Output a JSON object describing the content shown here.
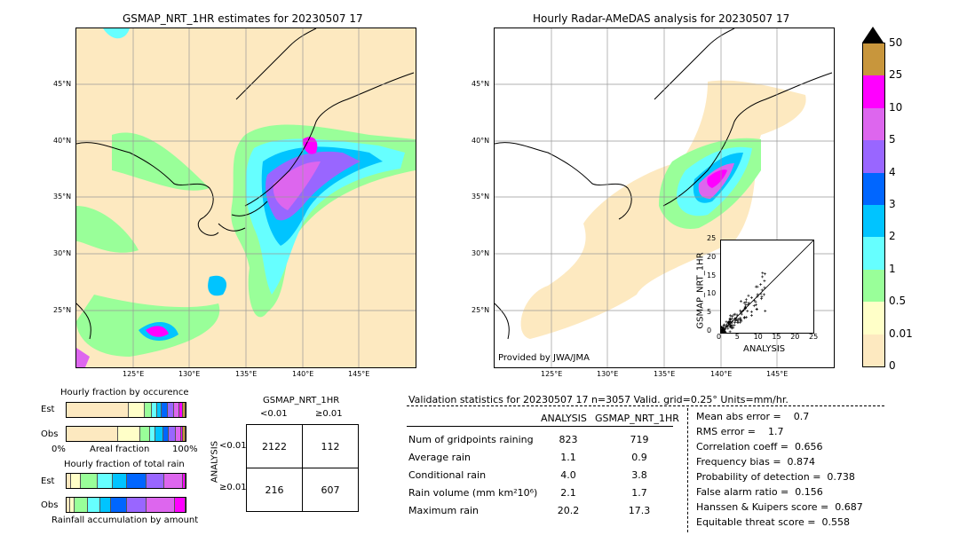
{
  "left_map": {
    "title": "GSMAP_NRT_1HR estimates for 20230507 17",
    "lat_labels": [
      "45°N",
      "40°N",
      "35°N",
      "30°N",
      "25°N"
    ],
    "lon_labels": [
      "125°E",
      "130°E",
      "135°E",
      "140°E",
      "145°E"
    ]
  },
  "right_map": {
    "title": "Hourly Radar-AMeDAS analysis for 20230507 17",
    "lat_labels": [
      "45°N",
      "40°N",
      "35°N",
      "30°N",
      "25°N"
    ],
    "lon_labels": [
      "125°E",
      "130°E",
      "135°E",
      "140°E",
      "145°E"
    ],
    "credit": "Provided by JWA/JMA"
  },
  "scatter": {
    "xlabel": "ANALYSIS",
    "ylabel": "GSMAP_NRT_1HR",
    "ticks": [
      "0",
      "5",
      "10",
      "15",
      "20",
      "25"
    ]
  },
  "colorbar": {
    "labels": [
      "50",
      "25",
      "10",
      "5",
      "4",
      "3",
      "2",
      "1",
      "0.5",
      "0.01",
      "0"
    ],
    "colors": [
      "#c8963c",
      "#ff00ff",
      "#dd66ee",
      "#9966ff",
      "#0066ff",
      "#00c4ff",
      "#66ffff",
      "#99ff99",
      "#ffffc8",
      "#fde9c0"
    ]
  },
  "occurrence": {
    "title": "Hourly fraction by occurence",
    "est_label": "Est",
    "obs_label": "Obs",
    "axis_left": "0%",
    "axis_mid": "Areal fraction",
    "axis_right": "100%"
  },
  "total_rain": {
    "title": "Hourly fraction of total rain",
    "est_label": "Est",
    "obs_label": "Obs",
    "axis_label": "Rainfall accumulation by amount"
  },
  "contingency": {
    "title": "GSMAP_NRT_1HR",
    "col_lt": "<0.01",
    "col_ge": "≥0.01",
    "row_axis": "ANALYSIS",
    "row_lt": "<0.01",
    "row_ge": "≥0.01",
    "cells": [
      "2122",
      "112",
      "216",
      "607"
    ]
  },
  "validation": {
    "header": "Validation statistics for 20230507 17  n=3057 Valid. grid=0.25° Units=mm/hr.",
    "col_analysis": "ANALYSIS",
    "col_gsmap": "GSMAP_NRT_1HR",
    "rows": [
      {
        "label": "Num of gridpoints raining",
        "analysis": "823",
        "gsmap": "719"
      },
      {
        "label": "Average rain",
        "analysis": "1.1",
        "gsmap": "0.9"
      },
      {
        "label": "Conditional rain",
        "analysis": "4.0",
        "gsmap": "3.8"
      },
      {
        "label": "Rain volume (mm km²10⁶)",
        "analysis": "2.1",
        "gsmap": "1.7"
      },
      {
        "label": "Maximum rain",
        "analysis": "20.2",
        "gsmap": "17.3"
      }
    ],
    "scores": [
      "Mean abs error =    0.7",
      "RMS error =    1.7",
      "Correlation coeff =  0.656",
      "Frequency bias =  0.874",
      "Probability of detection =  0.738",
      "False alarm ratio =  0.156",
      "Hanssen & Kuipers score =  0.687",
      "Equitable threat score =  0.558"
    ]
  },
  "chart_data": {
    "type": "table",
    "contingency_table": {
      "rows": [
        "ANALYSIS <0.01",
        "ANALYSIS ≥0.01"
      ],
      "columns": [
        "GSMAP_NRT_1HR <0.01",
        "GSMAP_NRT_1HR ≥0.01"
      ],
      "values": [
        [
          2122,
          112
        ],
        [
          216,
          607
        ]
      ]
    },
    "statistics": {
      "n": 3057,
      "grid": "0.25°",
      "units": "mm/hr",
      "num_gridpoints_raining": {
        "analysis": 823,
        "gsmap": 719
      },
      "average_rain": {
        "analysis": 1.1,
        "gsmap": 0.9
      },
      "conditional_rain": {
        "analysis": 4.0,
        "gsmap": 3.8
      },
      "rain_volume": {
        "analysis": 2.1,
        "gsmap": 1.7
      },
      "maximum_rain": {
        "analysis": 20.2,
        "gsmap": 17.3
      },
      "mean_abs_error": 0.7,
      "rms_error": 1.7,
      "correlation_coeff": 0.656,
      "frequency_bias": 0.874,
      "probability_of_detection": 0.738,
      "false_alarm_ratio": 0.156,
      "hanssen_kuipers_score": 0.687,
      "equitable_threat_score": 0.558
    },
    "colorbar_levels": [
      0,
      0.01,
      0.5,
      1,
      2,
      3,
      4,
      5,
      10,
      25,
      50
    ],
    "scatter_axis_range": [
      0,
      25
    ],
    "occurrence_fractions": {
      "est": [
        0.52,
        0.14,
        0.06,
        0.04,
        0.04,
        0.05,
        0.05,
        0.05,
        0.03,
        0.02
      ],
      "obs": [
        0.43,
        0.19,
        0.08,
        0.05,
        0.06,
        0.05,
        0.06,
        0.04,
        0.02,
        0.02
      ]
    },
    "total_rain_fractions": {
      "est": [
        0.04,
        0.08,
        0.14,
        0.13,
        0.12,
        0.16,
        0.15,
        0.16,
        0.02,
        0.0
      ],
      "obs": [
        0.03,
        0.04,
        0.13,
        0.11,
        0.1,
        0.15,
        0.18,
        0.26,
        0.1,
        0.0
      ]
    }
  }
}
